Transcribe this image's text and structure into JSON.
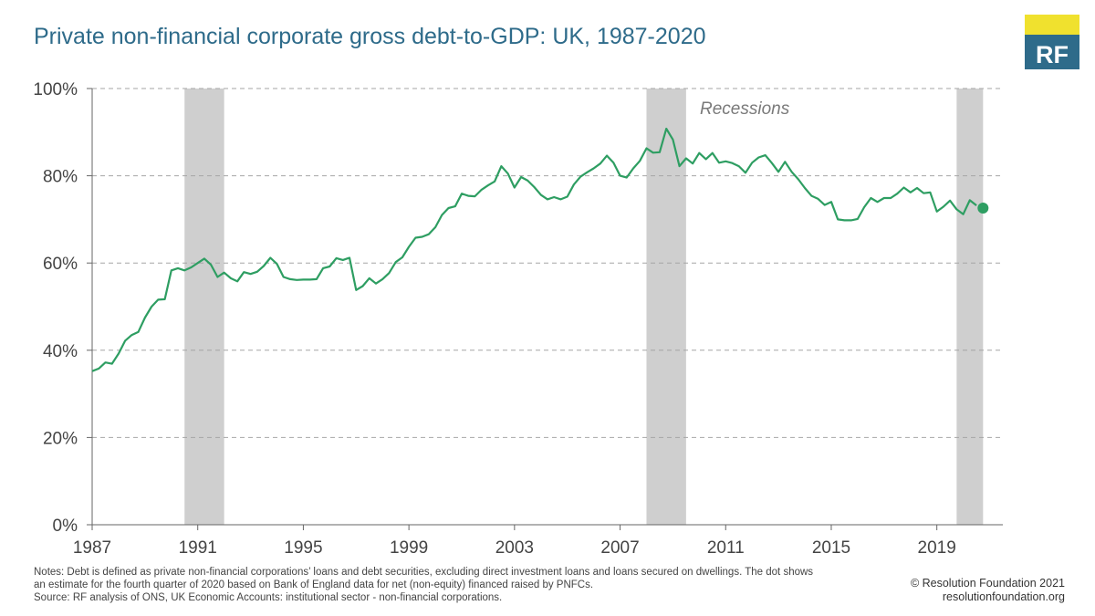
{
  "title": "Private non-financial corporate gross debt-to-GDP: UK, 1987-2020",
  "logo": {
    "text": "RF",
    "colors": {
      "yellow": "#f0e12e",
      "blue": "#2e6b8a"
    }
  },
  "colors": {
    "line": "#2e9e62",
    "recession": "#cfcfcf",
    "grid": "#a6a6a6",
    "axis": "#666666",
    "title": "#2e6b8a"
  },
  "chart_data": {
    "type": "line",
    "title": "Private non-financial corporate gross debt-to-GDP: UK, 1987-2020",
    "xlabel": "",
    "ylabel": "",
    "xlim": [
      1987,
      2021.5
    ],
    "ylim": [
      0,
      100
    ],
    "y_ticks": [
      0,
      20,
      40,
      60,
      80,
      100
    ],
    "y_tick_labels": [
      "0%",
      "20%",
      "40%",
      "60%",
      "80%",
      "100%"
    ],
    "x_ticks": [
      1987,
      1991,
      1995,
      1999,
      2003,
      2007,
      2011,
      2015,
      2019
    ],
    "x_tick_labels": [
      "1987",
      "1991",
      "1995",
      "1999",
      "2003",
      "2007",
      "2011",
      "2015",
      "2019"
    ],
    "grid": "horizontal dashed",
    "recession_label": "Recessions",
    "recessions": [
      [
        1990.5,
        1992.0
      ],
      [
        2008.0,
        2009.5
      ],
      [
        2019.75,
        2020.75
      ]
    ],
    "series": [
      {
        "values": [
          [
            1987.0,
            35.2
          ],
          [
            1987.25,
            35.8
          ],
          [
            1987.5,
            37.2
          ],
          [
            1987.75,
            36.9
          ],
          [
            1988.0,
            39.2
          ],
          [
            1988.25,
            42.2
          ],
          [
            1988.5,
            43.5
          ],
          [
            1988.75,
            44.2
          ],
          [
            1989.0,
            47.5
          ],
          [
            1989.25,
            50.0
          ],
          [
            1989.5,
            51.6
          ],
          [
            1989.75,
            51.7
          ],
          [
            1990.0,
            58.3
          ],
          [
            1990.25,
            58.8
          ],
          [
            1990.5,
            58.3
          ],
          [
            1990.75,
            59.0
          ],
          [
            1991.0,
            60.0
          ],
          [
            1991.25,
            61.0
          ],
          [
            1991.5,
            59.6
          ],
          [
            1991.75,
            56.8
          ],
          [
            1992.0,
            57.8
          ],
          [
            1992.25,
            56.5
          ],
          [
            1992.5,
            55.8
          ],
          [
            1992.75,
            57.9
          ],
          [
            1993.0,
            57.5
          ],
          [
            1993.25,
            58.0
          ],
          [
            1993.5,
            59.3
          ],
          [
            1993.75,
            61.2
          ],
          [
            1994.0,
            59.8
          ],
          [
            1994.25,
            56.8
          ],
          [
            1994.5,
            56.3
          ],
          [
            1994.75,
            56.1
          ],
          [
            1995.0,
            56.2
          ],
          [
            1995.25,
            56.2
          ],
          [
            1995.5,
            56.3
          ],
          [
            1995.75,
            58.8
          ],
          [
            1996.0,
            59.2
          ],
          [
            1996.25,
            61.1
          ],
          [
            1996.5,
            60.7
          ],
          [
            1996.75,
            61.2
          ],
          [
            1997.0,
            53.8
          ],
          [
            1997.25,
            54.7
          ],
          [
            1997.5,
            56.5
          ],
          [
            1997.75,
            55.3
          ],
          [
            1998.0,
            56.3
          ],
          [
            1998.25,
            57.7
          ],
          [
            1998.5,
            60.2
          ],
          [
            1998.75,
            61.3
          ],
          [
            1999.0,
            63.7
          ],
          [
            1999.25,
            65.8
          ],
          [
            1999.5,
            66.0
          ],
          [
            1999.75,
            66.6
          ],
          [
            2000.0,
            68.2
          ],
          [
            2000.25,
            71.0
          ],
          [
            2000.5,
            72.6
          ],
          [
            2000.75,
            73.0
          ],
          [
            2001.0,
            75.9
          ],
          [
            2001.25,
            75.4
          ],
          [
            2001.5,
            75.3
          ],
          [
            2001.75,
            76.8
          ],
          [
            2002.0,
            77.8
          ],
          [
            2002.25,
            78.7
          ],
          [
            2002.5,
            82.2
          ],
          [
            2002.75,
            80.5
          ],
          [
            2003.0,
            77.3
          ],
          [
            2003.25,
            79.7
          ],
          [
            2003.5,
            78.9
          ],
          [
            2003.75,
            77.4
          ],
          [
            2004.0,
            75.6
          ],
          [
            2004.25,
            74.6
          ],
          [
            2004.5,
            75.1
          ],
          [
            2004.75,
            74.6
          ],
          [
            2005.0,
            75.2
          ],
          [
            2005.25,
            78.0
          ],
          [
            2005.5,
            79.8
          ],
          [
            2005.75,
            80.8
          ],
          [
            2006.0,
            81.7
          ],
          [
            2006.25,
            82.8
          ],
          [
            2006.5,
            84.6
          ],
          [
            2006.75,
            83.0
          ],
          [
            2007.0,
            80.0
          ],
          [
            2007.25,
            79.6
          ],
          [
            2007.5,
            81.7
          ],
          [
            2007.75,
            83.4
          ],
          [
            2008.0,
            86.3
          ],
          [
            2008.25,
            85.3
          ],
          [
            2008.5,
            85.4
          ],
          [
            2008.75,
            90.8
          ],
          [
            2009.0,
            88.3
          ],
          [
            2009.25,
            82.2
          ],
          [
            2009.5,
            84.0
          ],
          [
            2009.75,
            82.8
          ],
          [
            2010.0,
            85.2
          ],
          [
            2010.25,
            83.8
          ],
          [
            2010.5,
            85.2
          ],
          [
            2010.75,
            83.0
          ],
          [
            2011.0,
            83.3
          ],
          [
            2011.25,
            82.9
          ],
          [
            2011.5,
            82.2
          ],
          [
            2011.75,
            80.7
          ],
          [
            2012.0,
            83.0
          ],
          [
            2012.25,
            84.2
          ],
          [
            2012.5,
            84.7
          ],
          [
            2012.75,
            82.9
          ],
          [
            2013.0,
            80.9
          ],
          [
            2013.25,
            83.2
          ],
          [
            2013.5,
            80.9
          ],
          [
            2013.75,
            79.2
          ],
          [
            2014.0,
            77.2
          ],
          [
            2014.25,
            75.4
          ],
          [
            2014.5,
            74.7
          ],
          [
            2014.75,
            73.3
          ],
          [
            2015.0,
            74.0
          ],
          [
            2015.25,
            70.0
          ],
          [
            2015.5,
            69.8
          ],
          [
            2015.75,
            69.8
          ],
          [
            2016.0,
            70.1
          ],
          [
            2016.25,
            72.8
          ],
          [
            2016.5,
            74.9
          ],
          [
            2016.75,
            74.0
          ],
          [
            2017.0,
            74.9
          ],
          [
            2017.25,
            74.9
          ],
          [
            2017.5,
            75.9
          ],
          [
            2017.75,
            77.3
          ],
          [
            2018.0,
            76.2
          ],
          [
            2018.25,
            77.2
          ],
          [
            2018.5,
            76.0
          ],
          [
            2018.75,
            76.2
          ],
          [
            2019.0,
            71.8
          ],
          [
            2019.25,
            72.9
          ],
          [
            2019.5,
            74.3
          ],
          [
            2019.75,
            72.3
          ],
          [
            2020.0,
            71.2
          ],
          [
            2020.25,
            74.4
          ],
          [
            2020.5,
            73.2
          ]
        ],
        "estimate_point": [
          2020.75,
          72.6
        ]
      }
    ]
  },
  "notes": {
    "line1": "Notes: Debt is defined as private non-financial corporations’ loans and debt securities, excluding direct investment loans and loans secured on dwellings. The dot shows",
    "line2": "an estimate for the fourth quarter of 2020 based on Bank of England data for net (non-equity) financed raised by PNFCs.",
    "line3": "Source: RF analysis of ONS, UK Economic Accounts: institutional sector - non-financial corporations."
  },
  "footer": {
    "copyright": "© Resolution Foundation 2021",
    "website": "resolutionfoundation.org"
  }
}
